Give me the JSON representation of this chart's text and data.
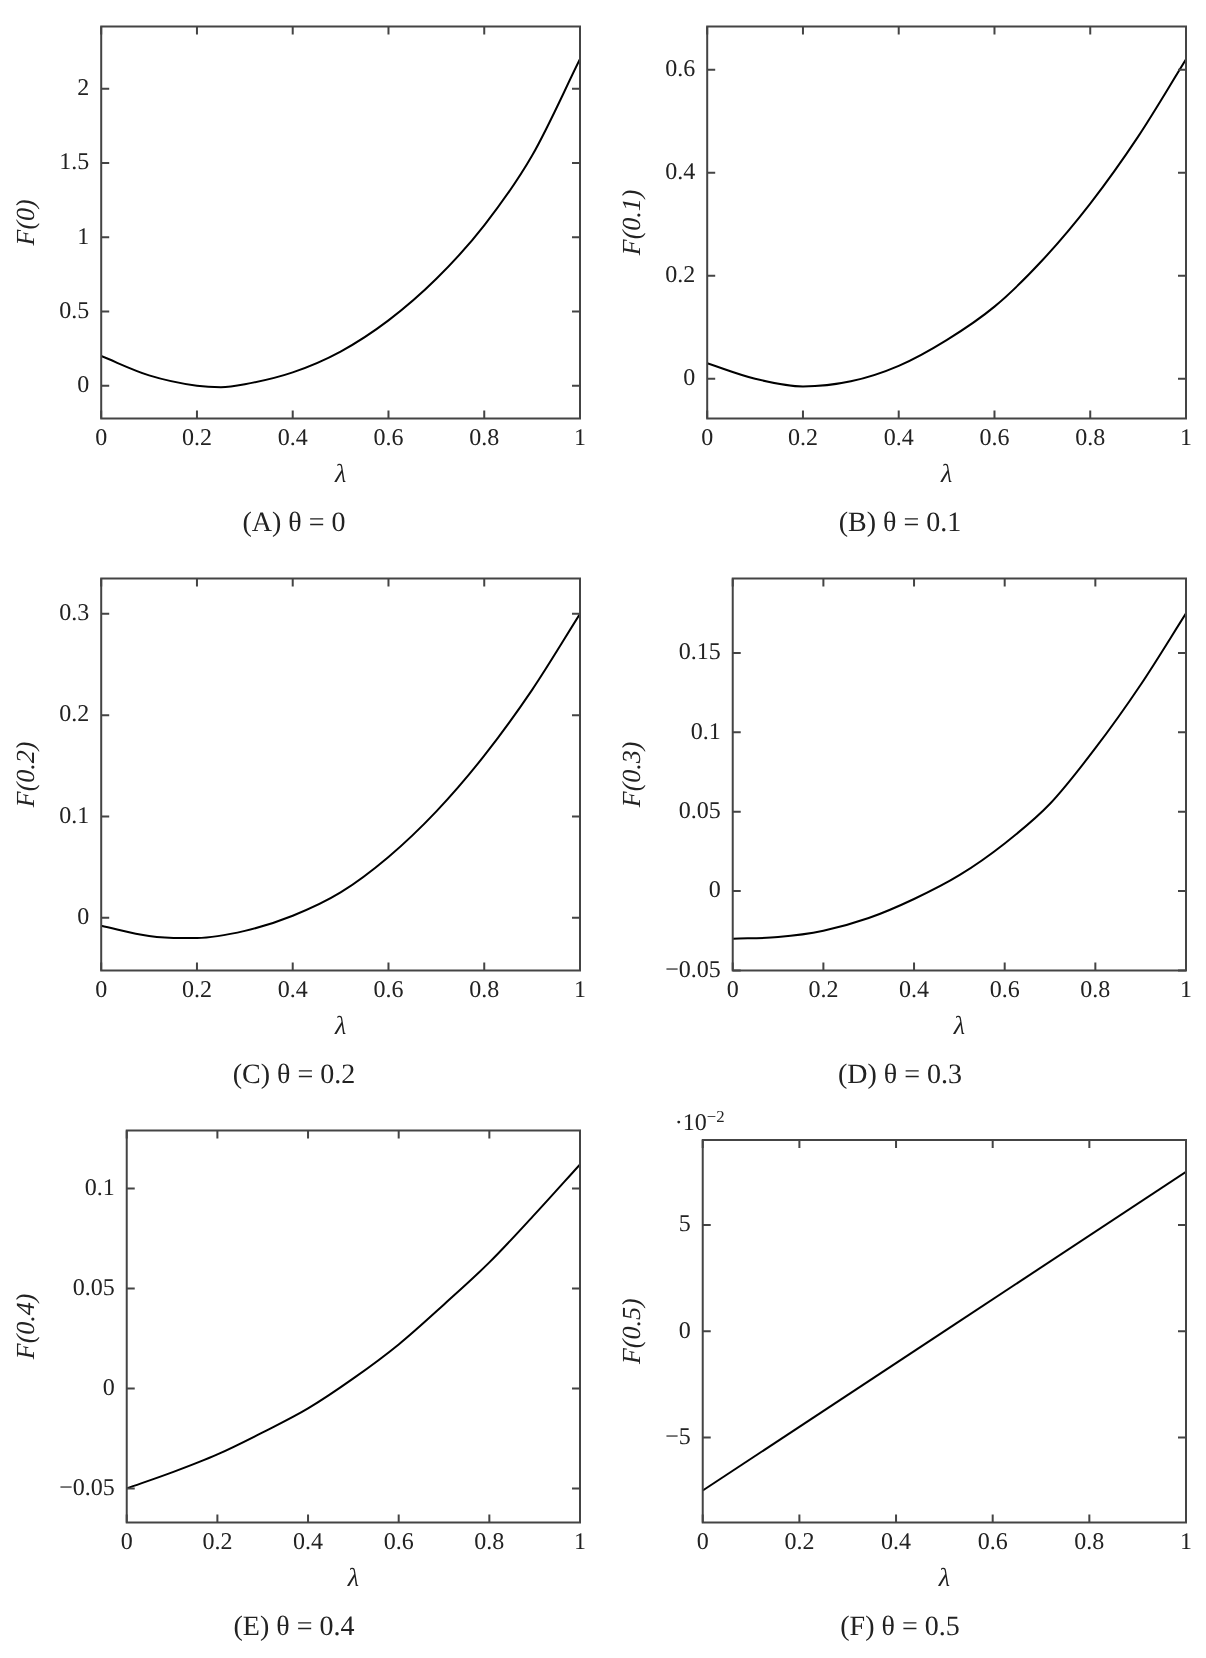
{
  "chart_data": [
    {
      "type": "line",
      "title": "(A) θ = 0",
      "xlabel": "λ",
      "ylabel": "F(0)",
      "x": [
        0,
        0.1,
        0.2,
        0.25,
        0.3,
        0.4,
        0.5,
        0.6,
        0.7,
        0.8,
        0.9,
        1
      ],
      "series": [
        {
          "color": "#000000",
          "values": [
            0.2,
            0.07,
            0.0,
            -0.01,
            0.01,
            0.09,
            0.23,
            0.44,
            0.72,
            1.08,
            1.55,
            2.2
          ]
        }
      ],
      "xlim": [
        0,
        1
      ],
      "xticks": [
        0,
        0.2,
        0.4,
        0.6,
        0.8,
        1
      ],
      "ylim": [
        -0.22,
        2.42
      ],
      "yticks": [
        0,
        0.5,
        1,
        1.5,
        2
      ],
      "grid": false,
      "legend": false
    },
    {
      "type": "line",
      "title": "(B) θ = 0.1",
      "xlabel": "λ",
      "ylabel": "F(0.1)",
      "x": [
        0,
        0.1,
        0.2,
        0.3,
        0.4,
        0.5,
        0.6,
        0.7,
        0.8,
        0.9,
        1
      ],
      "series": [
        {
          "color": "#000000",
          "values": [
            0.03,
            0.0,
            -0.015,
            -0.005,
            0.025,
            0.075,
            0.14,
            0.23,
            0.34,
            0.47,
            0.62
          ]
        }
      ],
      "xlim": [
        0,
        1
      ],
      "xticks": [
        0,
        0.2,
        0.4,
        0.6,
        0.8,
        1
      ],
      "ylim": [
        -0.077,
        0.684
      ],
      "yticks": [
        0,
        0.2,
        0.4,
        0.6
      ],
      "grid": false,
      "legend": false
    },
    {
      "type": "line",
      "title": "(C) θ = 0.2",
      "xlabel": "λ",
      "ylabel": "F(0.2)",
      "x": [
        0,
        0.1,
        0.17,
        0.2,
        0.3,
        0.4,
        0.5,
        0.6,
        0.7,
        0.8,
        0.9,
        1
      ],
      "series": [
        {
          "color": "#000000",
          "values": [
            -0.008,
            -0.018,
            -0.02,
            -0.02,
            -0.013,
            0.002,
            0.025,
            0.06,
            0.105,
            0.16,
            0.225,
            0.3
          ]
        }
      ],
      "xlim": [
        0,
        1
      ],
      "xticks": [
        0,
        0.2,
        0.4,
        0.6,
        0.8,
        1
      ],
      "ylim": [
        -0.052,
        0.335
      ],
      "yticks": [
        0,
        0.1,
        0.2,
        0.3
      ],
      "grid": false,
      "legend": false
    },
    {
      "type": "line",
      "title": "(D) θ = 0.3",
      "xlabel": "λ",
      "ylabel": "F(0.3)",
      "x": [
        0,
        0.1,
        0.2,
        0.3,
        0.4,
        0.5,
        0.6,
        0.7,
        0.8,
        0.9,
        1
      ],
      "series": [
        {
          "color": "#000000",
          "values": [
            -0.03,
            -0.029,
            -0.025,
            -0.017,
            -0.005,
            0.01,
            0.03,
            0.055,
            0.09,
            0.13,
            0.175
          ]
        }
      ],
      "xlim": [
        0,
        1
      ],
      "xticks": [
        0,
        0.2,
        0.4,
        0.6,
        0.8,
        1
      ],
      "ylim": [
        -0.05,
        0.197
      ],
      "yticks": [
        -0.05,
        0,
        0.05,
        0.1,
        0.15
      ],
      "grid": false,
      "legend": false
    },
    {
      "type": "line",
      "title": "(E) θ = 0.4",
      "xlabel": "λ",
      "ylabel": "F(0.4)",
      "x": [
        0,
        0.1,
        0.2,
        0.3,
        0.4,
        0.5,
        0.6,
        0.7,
        0.8,
        0.9,
        1
      ],
      "series": [
        {
          "color": "#000000",
          "values": [
            -0.05,
            -0.042,
            -0.033,
            -0.022,
            -0.01,
            0.005,
            0.022,
            0.042,
            0.063,
            0.087,
            0.112
          ]
        }
      ],
      "xlim": [
        0,
        1
      ],
      "xticks": [
        0,
        0.2,
        0.4,
        0.6,
        0.8,
        1
      ],
      "ylim": [
        -0.067,
        0.129
      ],
      "yticks": [
        -0.05,
        0,
        0.05,
        0.1
      ],
      "grid": false,
      "legend": false
    },
    {
      "type": "line",
      "title": "(F) θ = 0.5",
      "xlabel": "λ",
      "ylabel": "F(0.5)",
      "annotations": [
        "·10$^{−2}$"
      ],
      "x": [
        0,
        1
      ],
      "series": [
        {
          "color": "#000000",
          "values": [
            -7.5,
            7.5
          ]
        }
      ],
      "xlim": [
        0,
        1
      ],
      "xticks": [
        0,
        0.2,
        0.4,
        0.6,
        0.8,
        1
      ],
      "ylim": [
        -9,
        9
      ],
      "yticks": [
        -5,
        0,
        5
      ],
      "grid": false,
      "legend": false
    }
  ]
}
